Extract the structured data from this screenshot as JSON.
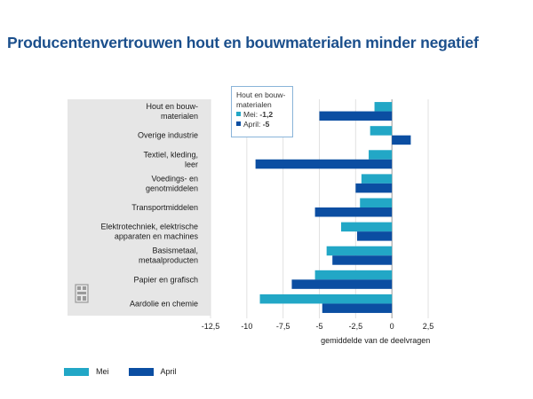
{
  "title": "Producentenvertrouwen hout en bouwmaterialen minder negatief",
  "colors": {
    "mei": "#22a7c6",
    "april": "#0b4ea2",
    "panel": "#e6e6e6",
    "title": "#1b4f8c"
  },
  "tooltip": {
    "title_line1": "Hout en bouw-",
    "title_line2": "materialen",
    "rows": [
      {
        "label": "Mei: ",
        "value": "-1,2"
      },
      {
        "label": "April: ",
        "value": "-5"
      }
    ]
  },
  "legend": [
    {
      "label": "Mei"
    },
    {
      "label": "April"
    }
  ],
  "chart_data": {
    "type": "bar",
    "orientation": "horizontal",
    "title": "Producentenvertrouwen hout en bouwmaterialen minder negatief",
    "xlabel": "gemiddelde van de deelvragen",
    "ylabel": "",
    "xlim": [
      -12.5,
      2.5
    ],
    "xticks": [
      -12.5,
      -10,
      -7.5,
      -5,
      -2.5,
      0,
      2.5
    ],
    "xtick_labels": [
      "-12,5",
      "-10",
      "-7,5",
      "-5",
      "-2,5",
      "0",
      "2,5"
    ],
    "grid": true,
    "legend_position": "bottom-left",
    "categories": [
      "Hout en bouw-|materialen",
      "Overige industrie",
      "Textiel, kleding,|leer",
      "Voedings- en|genotmiddelen",
      "Transportmiddelen",
      "Elektrotechniek, elektrische|apparaten en machines",
      "Basismetaal,|metaalproducten",
      "Papier en grafisch",
      "Aardolie en chemie"
    ],
    "series": [
      {
        "name": "Mei",
        "values": [
          -1.2,
          -1.5,
          -1.6,
          -2.1,
          -2.2,
          -3.5,
          -4.5,
          -5.3,
          -9.1
        ]
      },
      {
        "name": "April",
        "values": [
          -5,
          1.3,
          -9.4,
          -2.5,
          -5.3,
          -2.4,
          -4.1,
          -6.9,
          -4.8
        ]
      }
    ]
  }
}
